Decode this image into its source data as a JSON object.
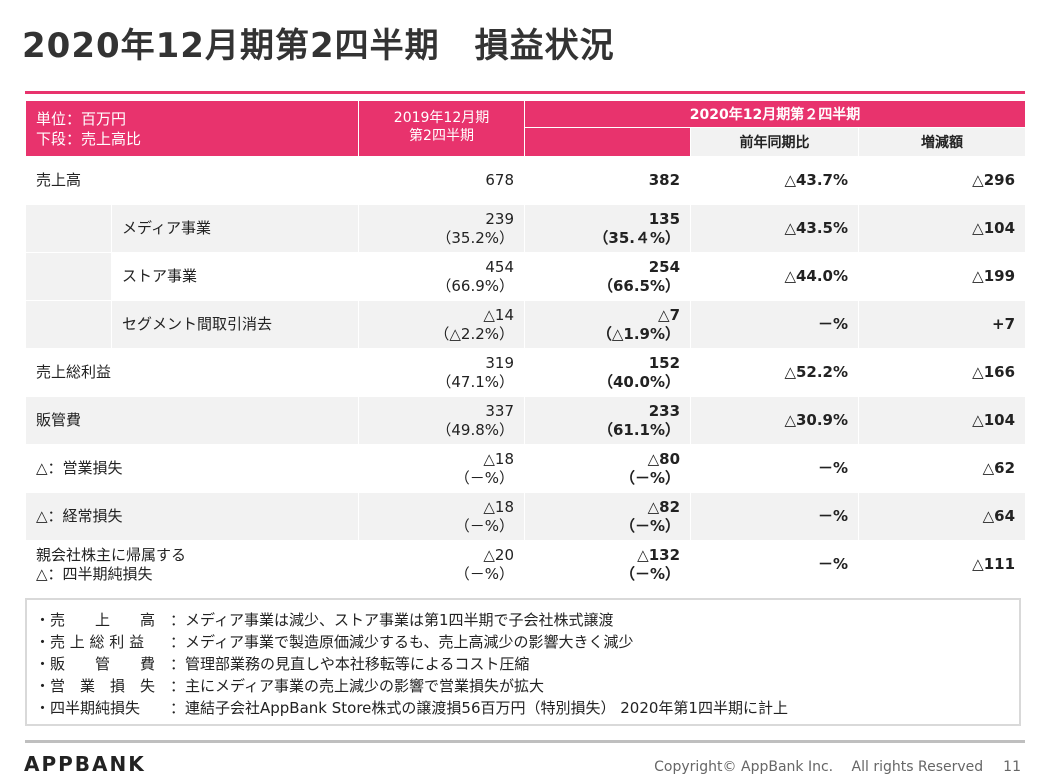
{
  "title": "2020年12月期第2四半期　損益状況",
  "header": {
    "unit_line1": "単位：百万円",
    "unit_line2": "下段：売上高比",
    "prev_line1": "2019年12月期",
    "prev_line2": "第2四半期",
    "current": "2020年12月期第２四半期",
    "yoy": "前年同期比",
    "change": "増減額"
  },
  "rows": [
    {
      "label": "売上高",
      "label2": "",
      "prev": "678",
      "prev_ratio": "",
      "cur": "382",
      "cur_ratio": "",
      "yoy": "△43.7%",
      "change": "△296"
    },
    {
      "label": "メディア事業",
      "label2": "",
      "prev": "239",
      "prev_ratio": "（35.2%）",
      "cur": "135",
      "cur_ratio": "（35.４%）",
      "yoy": "△43.5%",
      "change": "△104"
    },
    {
      "label": "ストア事業",
      "label2": "",
      "prev": "454",
      "prev_ratio": "（66.9%）",
      "cur": "254",
      "cur_ratio": "（66.5%）",
      "yoy": "△44.0%",
      "change": "△199"
    },
    {
      "label": "セグメント間取引消去",
      "label2": "",
      "prev": "△14",
      "prev_ratio": "（△2.2%）",
      "cur": "△7",
      "cur_ratio": "（△1.9%）",
      "yoy": "－%",
      "change": "+7"
    },
    {
      "label": "売上総利益",
      "label2": "",
      "prev": "319",
      "prev_ratio": "（47.1%）",
      "cur": "152",
      "cur_ratio": "（40.0%）",
      "yoy": "△52.2%",
      "change": "△166"
    },
    {
      "label": "販管費",
      "label2": "",
      "prev": "337",
      "prev_ratio": "（49.8%）",
      "cur": "233",
      "cur_ratio": "（61.1%）",
      "yoy": "△30.9%",
      "change": "△104"
    },
    {
      "label": "△：営業損失",
      "label2": "",
      "prev": "△18",
      "prev_ratio": "（－%）",
      "cur": "△80",
      "cur_ratio": "（－%）",
      "yoy": "－%",
      "change": "△62"
    },
    {
      "label": "△：経常損失",
      "label2": "",
      "prev": "△18",
      "prev_ratio": "（－%）",
      "cur": "△82",
      "cur_ratio": "（－%）",
      "yoy": "－%",
      "change": "△64"
    },
    {
      "label": "親会社株主に帰属する",
      "label2": "△：四半期純損失",
      "prev": "△20",
      "prev_ratio": "（－%）",
      "cur": "△132",
      "cur_ratio": "（－%）",
      "yoy": "－%",
      "change": "△111"
    }
  ],
  "notes": [
    {
      "key": "・売　　上　　高",
      "text": "：メディア事業は減少、ストア事業は第1四半期で子会社株式譲渡"
    },
    {
      "key": "・売 上 総 利 益",
      "text": "：メディア事業で製造原価減少するも、売上高減少の影響大きく減少"
    },
    {
      "key": "・販　　管　　費",
      "text": "：管理部業務の見直しや本社移転等によるコスト圧縮"
    },
    {
      "key": "・営　業　損　失",
      "text": "：主にメディア事業の売上減少の影響で営業損失が拡大"
    },
    {
      "key": "・四半期純損失",
      "text": "：連結子会社AppBank Store株式の譲渡損56百万円（特別損失） 2020年第1四半期に計上"
    }
  ],
  "footer": {
    "logo": "APPBANK",
    "copyright": "Copyright© AppBank Inc.　 All rights Reserved",
    "page": "11"
  },
  "colors": {
    "accent": "#e8336d",
    "row_shade": "#f2f2f2"
  }
}
